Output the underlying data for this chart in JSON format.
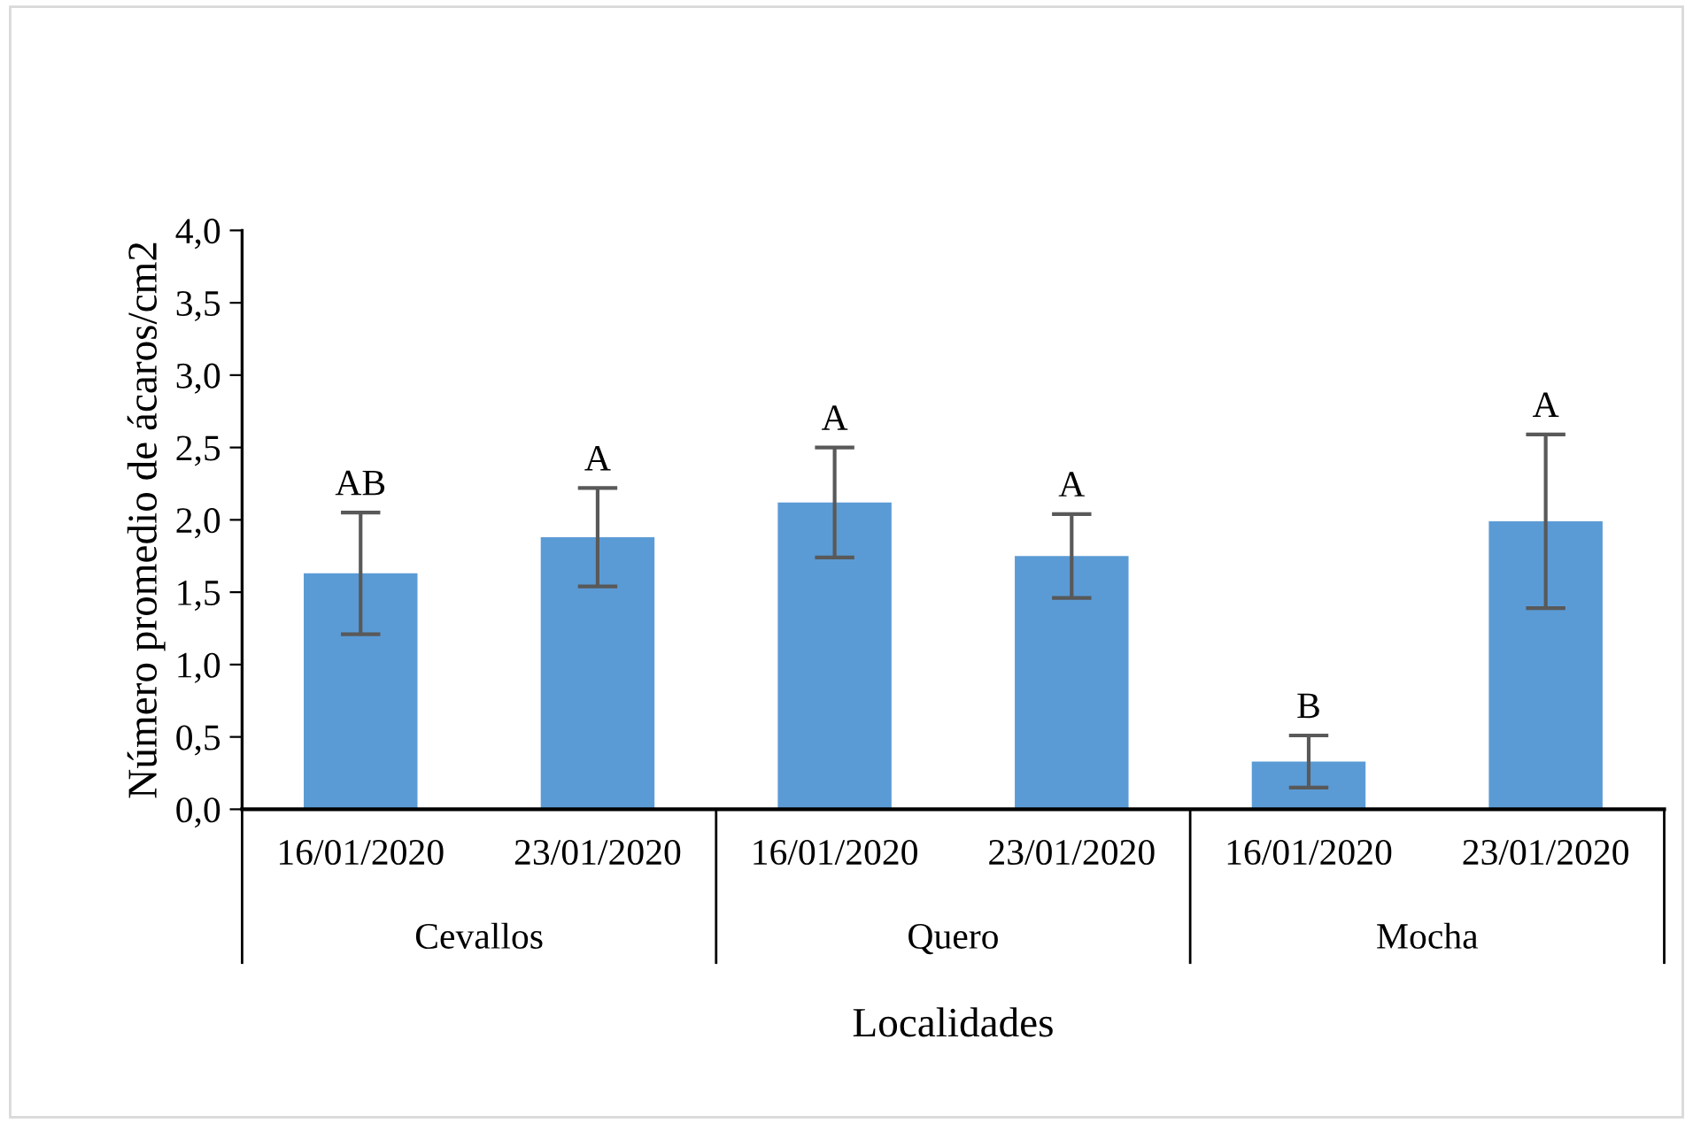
{
  "chart_data": {
    "type": "bar",
    "ylabel": "Número promedio de ácaros/cm2",
    "xlabel": "Localidades",
    "categories": [
      "16/01/2020",
      "23/01/2020",
      "16/01/2020",
      "23/01/2020",
      "16/01/2020",
      "23/01/2020"
    ],
    "values": [
      1.63,
      1.88,
      2.12,
      1.75,
      0.33,
      1.99
    ],
    "errors": [
      0.42,
      0.34,
      0.38,
      0.29,
      0.18,
      0.6
    ],
    "value_labels": [
      "AB",
      "A",
      "A",
      "A",
      "B",
      "A"
    ],
    "annotations": [
      "Cevallos",
      "Quero",
      "Mocha"
    ],
    "color": "#5b9bd5",
    "ylim": [
      0,
      4
    ],
    "yticks": [
      {
        "value": 0,
        "label": "0,0"
      },
      {
        "value": 0.5,
        "label": "0,5"
      },
      {
        "value": 1,
        "label": "1,0"
      },
      {
        "value": 1.5,
        "label": "1,5"
      },
      {
        "value": 2,
        "label": "2,0"
      },
      {
        "value": 2.5,
        "label": "2,5"
      },
      {
        "value": 3,
        "label": "3,0"
      },
      {
        "value": 3.5,
        "label": "3,5"
      },
      {
        "value": 4,
        "label": "4,0"
      }
    ],
    "grid": false
  }
}
